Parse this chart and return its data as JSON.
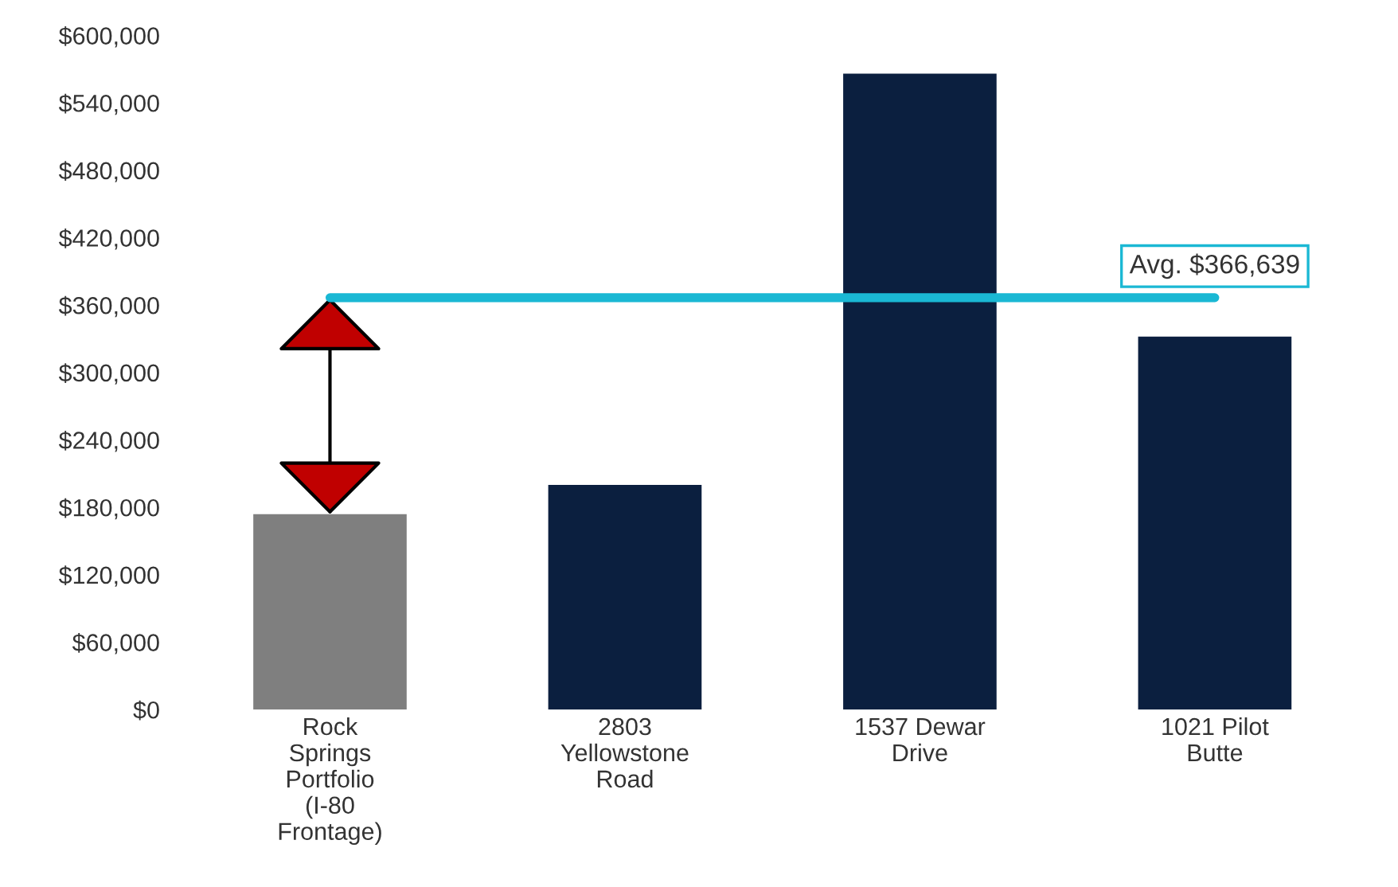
{
  "chart_data": {
    "type": "bar",
    "categories": [
      "Rock Springs Portfolio (I-80 Frontage)",
      "2803 Yellowstone Road",
      "1537 Dewar Drive",
      "1021 Pilot Butte"
    ],
    "values": [
      174000,
      200000,
      566000,
      332000
    ],
    "colors": [
      "#7f7f7f",
      "#0b1f3f",
      "#0b1f3f",
      "#0b1f3f"
    ],
    "ylim": [
      0,
      600000
    ],
    "yticks": [
      {
        "value": 0,
        "label": "$0"
      },
      {
        "value": 60000,
        "label": "$60,000"
      },
      {
        "value": 120000,
        "label": "$120,000"
      },
      {
        "value": 180000,
        "label": "$180,000"
      },
      {
        "value": 240000,
        "label": "$240,000"
      },
      {
        "value": 300000,
        "label": "$300,000"
      },
      {
        "value": 360000,
        "label": "$360,000"
      },
      {
        "value": 420000,
        "label": "$420,000"
      },
      {
        "value": 480000,
        "label": "$480,000"
      },
      {
        "value": 540000,
        "label": "$540,000"
      },
      {
        "value": 600000,
        "label": "$600,000"
      }
    ],
    "ref_lines": [
      {
        "axis": "y",
        "value": 366639,
        "label": "Avg. $366,639",
        "color": "#1ab8d4"
      }
    ],
    "grid": false
  }
}
